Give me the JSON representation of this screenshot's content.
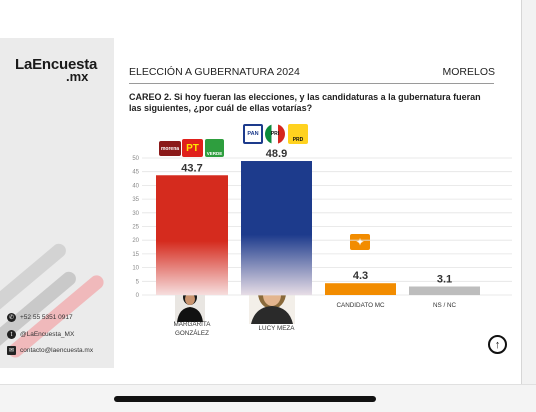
{
  "brand": {
    "name": "LaEncuesta",
    "suffix": ".mx"
  },
  "header": {
    "title": "ELECCIÓN A GUBERNATURA 2024",
    "region": "MORELOS"
  },
  "question": "CAREO 2. Si hoy fueran las elecciones, y las candidaturas a la gubernatura fueran las siguientes, ¿por cuál de ellas votarías?",
  "contacts": {
    "whatsapp": "+52 55 5351 0917",
    "twitter": "@LaEncuesta_MX",
    "email": "contacto@laencuesta.mx"
  },
  "parties": {
    "morena": "morena",
    "pt": "PT",
    "verde": "VERDE",
    "pan": "PAN",
    "pri": "PRI",
    "prd": "PRD"
  },
  "colors": {
    "morena": "#d52b1e",
    "pan": "#1d3b8c",
    "mc": "#f28c00",
    "nsnc": "#bdbdbd"
  },
  "chart_data": {
    "type": "bar",
    "categories": [
      "MARGARITA GONZÁLEZ",
      "LUCY MEZA",
      "CANDIDATO MC",
      "NS / NC"
    ],
    "values": [
      43.7,
      48.9,
      4.3,
      3.1
    ],
    "value_labels": [
      "43.7",
      "48.9",
      "4.3",
      "3.1"
    ],
    "ylim": [
      0,
      50
    ],
    "yticks": [
      0,
      5,
      10,
      15,
      20,
      25,
      30,
      35,
      40,
      45,
      50
    ],
    "grid": true
  }
}
